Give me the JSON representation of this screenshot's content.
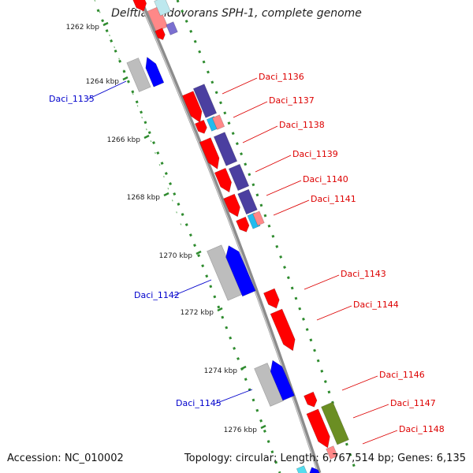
{
  "title": "Delftia acidovorans SPH-1, complete genome",
  "footer": {
    "accession": "Accession: NC_010002",
    "summary": "Topology: circular; Length: 6,767,514 bp; Genes: 6,135"
  },
  "colors": {
    "backbone": "#8c8c8c",
    "grid": "#2e8b2e",
    "gene_forward": "#0000ff",
    "gene_reverse": "#ff0000",
    "gene_dark": "#4b3fa0",
    "gene_gray": "#bdbdbd",
    "gene_olive": "#6b8e23",
    "gene_cyan": "#22bbee",
    "gene_pink": "#ff8888",
    "label_forward": "#0000cc",
    "label_reverse": "#dd0000"
  },
  "scale_labels": [
    "1262 kbp",
    "1264 kbp",
    "1266 kbp",
    "1268 kbp",
    "1270 kbp",
    "1272 kbp",
    "1274 kbp",
    "1276 kbp"
  ],
  "gene_labels": {
    "forward": [
      "Daci_1135",
      "Daci_1142",
      "Daci_1145"
    ],
    "reverse": [
      "Daci_1136",
      "Daci_1137",
      "Daci_1138",
      "Daci_1139",
      "Daci_1140",
      "Daci_1141",
      "Daci_1143",
      "Daci_1144",
      "Daci_1146",
      "Daci_1147",
      "Daci_1148"
    ]
  }
}
